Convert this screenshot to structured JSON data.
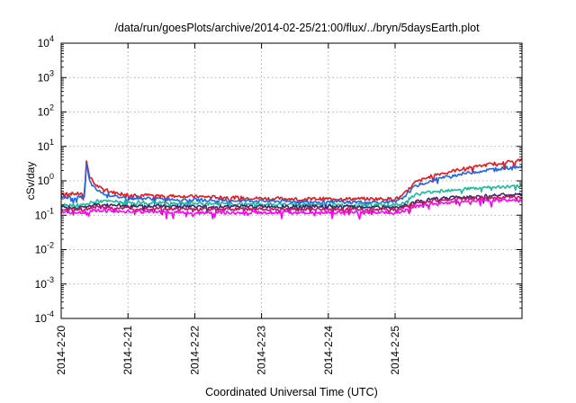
{
  "chart_data": {
    "type": "line",
    "title": "/data/run/goesPlots/archive/2014-02-25/21:00/flux/../bryn/5daysEarth.plot",
    "xlabel": "Coordinated Universal Time (UTC)",
    "ylabel": "cSv/day",
    "yscale": "log",
    "ylim": [
      0.0001,
      10000
    ],
    "xlim": [
      0,
      6.9
    ],
    "x_unit": "days since 2014-2-20 00:00 UTC",
    "grid": true,
    "legend": "none",
    "x_ticks": [
      {
        "value": 0,
        "label": "2014-2-20"
      },
      {
        "value": 1,
        "label": "2014-2-21"
      },
      {
        "value": 2,
        "label": "2014-2-22"
      },
      {
        "value": 3,
        "label": "2014-2-23"
      },
      {
        "value": 4,
        "label": "2014-2-24"
      },
      {
        "value": 5,
        "label": "2014-2-25"
      }
    ],
    "y_ticks": [
      {
        "value": 0.0001,
        "base": "10",
        "exp": "-4"
      },
      {
        "value": 0.001,
        "base": "10",
        "exp": "-3"
      },
      {
        "value": 0.01,
        "base": "10",
        "exp": "-2"
      },
      {
        "value": 0.1,
        "base": "10",
        "exp": "-1"
      },
      {
        "value": 1,
        "base": "10",
        "exp": "0"
      },
      {
        "value": 10,
        "base": "10",
        "exp": "1"
      },
      {
        "value": 100,
        "base": "10",
        "exp": "2"
      },
      {
        "value": 1000,
        "base": "10",
        "exp": "3"
      },
      {
        "value": 10000,
        "base": "10",
        "exp": "4"
      }
    ],
    "series": [
      {
        "color": "#e41a1c",
        "x": [
          0,
          0.2,
          0.3,
          0.35,
          0.38,
          0.42,
          0.5,
          0.6,
          0.8,
          1.0,
          1.5,
          2.0,
          2.5,
          3.0,
          3.5,
          4.0,
          4.5,
          4.9,
          5.0,
          5.1,
          5.3,
          5.6,
          6.0,
          6.5,
          6.9
        ],
        "y": [
          0.45,
          0.42,
          0.42,
          0.45,
          4.2,
          1.4,
          0.8,
          0.6,
          0.45,
          0.4,
          0.37,
          0.35,
          0.33,
          0.31,
          0.3,
          0.3,
          0.3,
          0.3,
          0.3,
          0.35,
          0.9,
          1.5,
          2.2,
          3.2,
          4.0
        ]
      },
      {
        "color": "#2166e8",
        "x": [
          0,
          0.2,
          0.3,
          0.35,
          0.38,
          0.42,
          0.5,
          0.6,
          0.8,
          1.0,
          1.5,
          2.0,
          2.5,
          3.0,
          3.5,
          4.0,
          4.5,
          4.9,
          5.0,
          5.1,
          5.3,
          5.6,
          6.0,
          6.5,
          6.9
        ],
        "y": [
          0.35,
          0.33,
          0.33,
          0.36,
          3.3,
          1.0,
          0.6,
          0.45,
          0.35,
          0.32,
          0.3,
          0.28,
          0.27,
          0.26,
          0.25,
          0.25,
          0.24,
          0.24,
          0.24,
          0.3,
          0.7,
          1.1,
          1.6,
          2.2,
          2.7
        ]
      },
      {
        "color": "#1abc9c",
        "x": [
          0,
          0.35,
          0.5,
          1.0,
          2.0,
          3.0,
          4.0,
          4.5,
          5.0,
          5.1,
          5.3,
          5.6,
          6.0,
          6.5,
          6.9
        ],
        "y": [
          0.2,
          0.2,
          0.26,
          0.24,
          0.22,
          0.21,
          0.2,
          0.2,
          0.2,
          0.22,
          0.4,
          0.5,
          0.58,
          0.65,
          0.7
        ]
      },
      {
        "color": "#3b2a6b",
        "x": [
          0,
          0.35,
          0.5,
          1.0,
          2.0,
          3.0,
          4.0,
          4.5,
          5.0,
          5.1,
          5.3,
          5.6,
          6.0,
          6.5,
          6.9
        ],
        "y": [
          0.17,
          0.17,
          0.2,
          0.19,
          0.18,
          0.18,
          0.18,
          0.17,
          0.17,
          0.18,
          0.25,
          0.3,
          0.34,
          0.38,
          0.4
        ]
      },
      {
        "color": "#c2185b",
        "x": [
          0,
          0.35,
          0.5,
          1.0,
          2.0,
          3.0,
          4.0,
          4.5,
          5.0,
          5.1,
          5.3,
          5.6,
          6.0,
          6.5,
          6.9
        ],
        "y": [
          0.15,
          0.15,
          0.17,
          0.16,
          0.15,
          0.15,
          0.15,
          0.15,
          0.15,
          0.16,
          0.22,
          0.27,
          0.3,
          0.33,
          0.35
        ]
      },
      {
        "color": "#ff00ff",
        "x": [
          0,
          0.35,
          0.5,
          1.0,
          2.0,
          3.0,
          4.0,
          4.5,
          5.0,
          5.1,
          5.3,
          5.6,
          6.0,
          6.5,
          6.9
        ],
        "y": [
          0.12,
          0.12,
          0.14,
          0.13,
          0.12,
          0.12,
          0.12,
          0.12,
          0.12,
          0.13,
          0.18,
          0.22,
          0.25,
          0.27,
          0.28
        ]
      }
    ]
  }
}
